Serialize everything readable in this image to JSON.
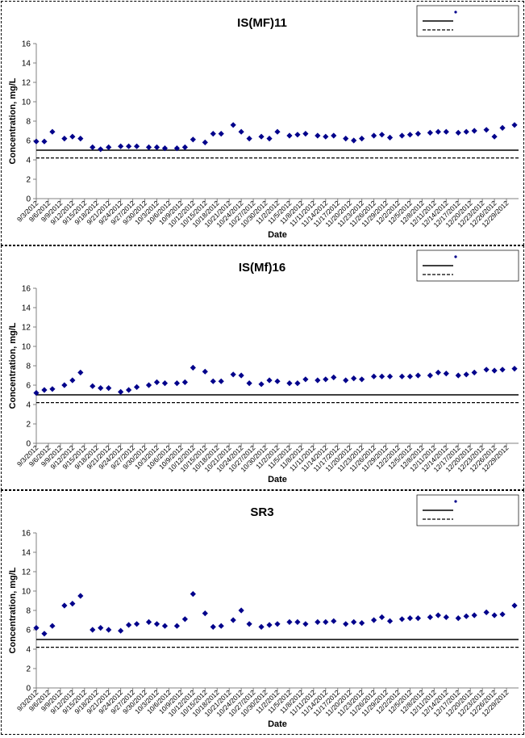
{
  "colors": {
    "marker": "#00008B",
    "axis": "#808080",
    "line": "#000000"
  },
  "x_dates": [
    "9/3/2012",
    "9/6/2012",
    "9/9/2012",
    "9/12/2012",
    "9/15/2012",
    "9/18/2012",
    "9/21/2012",
    "9/24/2012",
    "9/27/2012",
    "9/30/2012",
    "10/3/2012",
    "10/6/2012",
    "10/9/2012",
    "10/12/2012",
    "10/15/2012",
    "10/18/2012",
    "10/21/2012",
    "10/24/2012",
    "10/27/2012",
    "10/30/2012",
    "11/2/2012",
    "11/5/2012",
    "11/8/2012",
    "11/11/2012",
    "11/14/2012",
    "11/17/2012",
    "11/20/2012",
    "11/23/2012",
    "11/26/2012",
    "11/29/2012",
    "12/2/2012",
    "12/5/2012",
    "12/8/2012",
    "12/11/2012",
    "12/14/2012",
    "12/17/2012",
    "12/20/2012",
    "12/23/2012",
    "12/26/2012",
    "12/29/2012"
  ],
  "chart_data": [
    {
      "type": "scatter",
      "title": "IS(MF)11",
      "xlabel": "Date",
      "ylabel": "Concentration, mg/L",
      "ylim": [
        0,
        16
      ],
      "yticks": [
        0,
        2,
        4,
        6,
        8,
        10,
        12,
        14,
        16
      ],
      "x_tick_labels": [
        "9/3/2012",
        "9/6/2012",
        "9/9/2012",
        "9/12/2012",
        "9/15/2012",
        "9/18/2012",
        "9/21/2012",
        "9/24/2012",
        "9/27/2012",
        "9/30/2012",
        "10/3/2012",
        "10/6/2012",
        "10/9/2012",
        "10/12/2012",
        "10/15/2012",
        "10/18/2012",
        "10/21/2012",
        "10/24/2012",
        "10/27/2012",
        "10/30/2012",
        "11/2/2012",
        "11/5/2012",
        "11/8/2012",
        "11/11/2012",
        "11/14/2012",
        "11/17/2012",
        "11/20/2012",
        "11/23/2012",
        "11/26/2012",
        "11/29/2012",
        "12/2/2012",
        "12/5/2012",
        "12/8/2012",
        "12/11/2012",
        "12/14/2012",
        "12/17/2012",
        "12/20/2012",
        "12/23/2012",
        "12/26/2012",
        "12/29/2012"
      ],
      "legend_placement": "top-right",
      "grid": false,
      "points": [
        {
          "x": "9/3/2012",
          "y": 5.9
        },
        {
          "x": "9/5/2012",
          "y": 5.9
        },
        {
          "x": "9/7/2012",
          "y": 6.9
        },
        {
          "x": "9/10/2012",
          "y": 6.2
        },
        {
          "x": "9/12/2012",
          "y": 6.4
        },
        {
          "x": "9/14/2012",
          "y": 6.2
        },
        {
          "x": "9/17/2012",
          "y": 5.3
        },
        {
          "x": "9/19/2012",
          "y": 5.1
        },
        {
          "x": "9/21/2012",
          "y": 5.3
        },
        {
          "x": "9/24/2012",
          "y": 5.4
        },
        {
          "x": "9/26/2012",
          "y": 5.4
        },
        {
          "x": "9/28/2012",
          "y": 5.4
        },
        {
          "x": "10/1/2012",
          "y": 5.3
        },
        {
          "x": "10/3/2012",
          "y": 5.3
        },
        {
          "x": "10/5/2012",
          "y": 5.2
        },
        {
          "x": "10/8/2012",
          "y": 5.2
        },
        {
          "x": "10/10/2012",
          "y": 5.3
        },
        {
          "x": "10/12/2012",
          "y": 6.1
        },
        {
          "x": "10/15/2012",
          "y": 5.8
        },
        {
          "x": "10/17/2012",
          "y": 6.7
        },
        {
          "x": "10/19/2012",
          "y": 6.7
        },
        {
          "x": "10/22/2012",
          "y": 7.6
        },
        {
          "x": "10/24/2012",
          "y": 6.9
        },
        {
          "x": "10/26/2012",
          "y": 6.2
        },
        {
          "x": "10/29/2012",
          "y": 6.4
        },
        {
          "x": "10/31/2012",
          "y": 6.2
        },
        {
          "x": "11/2/2012",
          "y": 6.9
        },
        {
          "x": "11/5/2012",
          "y": 6.5
        },
        {
          "x": "11/7/2012",
          "y": 6.6
        },
        {
          "x": "11/9/2012",
          "y": 6.7
        },
        {
          "x": "11/12/2012",
          "y": 6.5
        },
        {
          "x": "11/14/2012",
          "y": 6.4
        },
        {
          "x": "11/16/2012",
          "y": 6.5
        },
        {
          "x": "11/19/2012",
          "y": 6.2
        },
        {
          "x": "11/21/2012",
          "y": 6.0
        },
        {
          "x": "11/23/2012",
          "y": 6.2
        },
        {
          "x": "11/26/2012",
          "y": 6.5
        },
        {
          "x": "11/28/2012",
          "y": 6.6
        },
        {
          "x": "11/30/2012",
          "y": 6.3
        },
        {
          "x": "12/3/2012",
          "y": 6.5
        },
        {
          "x": "12/5/2012",
          "y": 6.6
        },
        {
          "x": "12/7/2012",
          "y": 6.7
        },
        {
          "x": "12/10/2012",
          "y": 6.8
        },
        {
          "x": "12/12/2012",
          "y": 6.9
        },
        {
          "x": "12/14/2012",
          "y": 6.9
        },
        {
          "x": "12/17/2012",
          "y": 6.8
        },
        {
          "x": "12/19/2012",
          "y": 6.9
        },
        {
          "x": "12/21/2012",
          "y": 7.0
        },
        {
          "x": "12/24/2012",
          "y": 7.1
        },
        {
          "x": "12/26/2012",
          "y": 6.4
        },
        {
          "x": "12/28/2012",
          "y": 7.3
        },
        {
          "x": "12/31/2012",
          "y": 7.6
        }
      ],
      "reference_lines": [
        {
          "y": 5.0,
          "style": "solid"
        },
        {
          "y": 4.2,
          "style": "dashed"
        }
      ]
    },
    {
      "type": "scatter",
      "title": "IS(Mf)16",
      "xlabel": "Date",
      "ylabel": "Concentration, mg/L",
      "ylim": [
        0,
        16
      ],
      "yticks": [
        0,
        2,
        4,
        6,
        8,
        10,
        12,
        14,
        16
      ],
      "x_tick_labels": [
        "9/3/2012",
        "9/6/2012",
        "9/9/2012",
        "9/12/2012",
        "9/15/2012",
        "9/18/2012",
        "9/21/2012",
        "9/24/2012",
        "9/27/2012",
        "9/30/2012",
        "10/3/2012",
        "10/6/2012",
        "10/9/2012",
        "10/12/2012",
        "10/15/2012",
        "10/18/2012",
        "10/21/2012",
        "10/24/2012",
        "10/27/2012",
        "10/30/2012",
        "11/2/2012",
        "11/5/2012",
        "11/8/2012",
        "11/11/2012",
        "11/14/2012",
        "11/17/2012",
        "11/20/2012",
        "11/23/2012",
        "11/26/2012",
        "11/29/2012",
        "12/2/2012",
        "12/5/2012",
        "12/8/2012",
        "12/11/2012",
        "12/14/2012",
        "12/17/2012",
        "12/20/2012",
        "12/23/2012",
        "12/26/2012",
        "12/29/2012"
      ],
      "legend_placement": "top-right",
      "grid": false,
      "points": [
        {
          "x": "9/3/2012",
          "y": 5.2
        },
        {
          "x": "9/5/2012",
          "y": 5.5
        },
        {
          "x": "9/7/2012",
          "y": 5.6
        },
        {
          "x": "9/10/2012",
          "y": 6.0
        },
        {
          "x": "9/12/2012",
          "y": 6.5
        },
        {
          "x": "9/14/2012",
          "y": 7.3
        },
        {
          "x": "9/17/2012",
          "y": 5.9
        },
        {
          "x": "9/19/2012",
          "y": 5.7
        },
        {
          "x": "9/21/2012",
          "y": 5.7
        },
        {
          "x": "9/24/2012",
          "y": 5.3
        },
        {
          "x": "9/26/2012",
          "y": 5.5
        },
        {
          "x": "9/28/2012",
          "y": 5.8
        },
        {
          "x": "10/1/2012",
          "y": 6.0
        },
        {
          "x": "10/3/2012",
          "y": 6.3
        },
        {
          "x": "10/5/2012",
          "y": 6.2
        },
        {
          "x": "10/8/2012",
          "y": 6.2
        },
        {
          "x": "10/10/2012",
          "y": 6.3
        },
        {
          "x": "10/12/2012",
          "y": 7.8
        },
        {
          "x": "10/15/2012",
          "y": 7.4
        },
        {
          "x": "10/17/2012",
          "y": 6.4
        },
        {
          "x": "10/19/2012",
          "y": 6.4
        },
        {
          "x": "10/22/2012",
          "y": 7.1
        },
        {
          "x": "10/24/2012",
          "y": 7.0
        },
        {
          "x": "10/26/2012",
          "y": 6.2
        },
        {
          "x": "10/29/2012",
          "y": 6.1
        },
        {
          "x": "10/31/2012",
          "y": 6.5
        },
        {
          "x": "11/2/2012",
          "y": 6.4
        },
        {
          "x": "11/5/2012",
          "y": 6.2
        },
        {
          "x": "11/7/2012",
          "y": 6.2
        },
        {
          "x": "11/9/2012",
          "y": 6.6
        },
        {
          "x": "11/12/2012",
          "y": 6.5
        },
        {
          "x": "11/14/2012",
          "y": 6.6
        },
        {
          "x": "11/16/2012",
          "y": 6.8
        },
        {
          "x": "11/19/2012",
          "y": 6.5
        },
        {
          "x": "11/21/2012",
          "y": 6.7
        },
        {
          "x": "11/23/2012",
          "y": 6.6
        },
        {
          "x": "11/26/2012",
          "y": 6.9
        },
        {
          "x": "11/28/2012",
          "y": 6.9
        },
        {
          "x": "11/30/2012",
          "y": 6.9
        },
        {
          "x": "12/3/2012",
          "y": 6.9
        },
        {
          "x": "12/5/2012",
          "y": 6.9
        },
        {
          "x": "12/7/2012",
          "y": 7.0
        },
        {
          "x": "12/10/2012",
          "y": 7.0
        },
        {
          "x": "12/12/2012",
          "y": 7.3
        },
        {
          "x": "12/14/2012",
          "y": 7.2
        },
        {
          "x": "12/17/2012",
          "y": 7.0
        },
        {
          "x": "12/19/2012",
          "y": 7.1
        },
        {
          "x": "12/21/2012",
          "y": 7.3
        },
        {
          "x": "12/24/2012",
          "y": 7.6
        },
        {
          "x": "12/26/2012",
          "y": 7.5
        },
        {
          "x": "12/28/2012",
          "y": 7.6
        },
        {
          "x": "12/31/2012",
          "y": 7.7
        }
      ],
      "reference_lines": [
        {
          "y": 5.0,
          "style": "solid"
        },
        {
          "y": 4.2,
          "style": "dashed"
        }
      ]
    },
    {
      "type": "scatter",
      "title": "SR3",
      "xlabel": "Date",
      "ylabel": "Concentration, mg/L",
      "ylim": [
        0,
        16
      ],
      "yticks": [
        0,
        2,
        4,
        6,
        8,
        10,
        12,
        14,
        16
      ],
      "x_tick_labels": [
        "9/3/2012",
        "9/6/2012",
        "9/9/2012",
        "9/12/2012",
        "9/15/2012",
        "9/18/2012",
        "9/21/2012",
        "9/24/2012",
        "9/27/2012",
        "9/30/2012",
        "10/3/2012",
        "10/6/2012",
        "10/9/2012",
        "10/12/2012",
        "10/15/2012",
        "10/18/2012",
        "10/21/2012",
        "10/24/2012",
        "10/27/2012",
        "10/30/2012",
        "11/2/2012",
        "11/5/2012",
        "11/8/2012",
        "11/11/2012",
        "11/14/2012",
        "11/17/2012",
        "11/20/2012",
        "11/23/2012",
        "11/26/2012",
        "11/29/2012",
        "12/2/2012",
        "12/5/2012",
        "12/8/2012",
        "12/11/2012",
        "12/14/2012",
        "12/17/2012",
        "12/20/2012",
        "12/23/2012",
        "12/26/2012",
        "12/29/2012"
      ],
      "legend_placement": "top-right",
      "grid": false,
      "points": [
        {
          "x": "9/3/2012",
          "y": 6.2
        },
        {
          "x": "9/5/2012",
          "y": 5.6
        },
        {
          "x": "9/7/2012",
          "y": 6.4
        },
        {
          "x": "9/10/2012",
          "y": 8.5
        },
        {
          "x": "9/12/2012",
          "y": 8.7
        },
        {
          "x": "9/14/2012",
          "y": 9.5
        },
        {
          "x": "9/17/2012",
          "y": 6.0
        },
        {
          "x": "9/19/2012",
          "y": 6.2
        },
        {
          "x": "9/21/2012",
          "y": 6.0
        },
        {
          "x": "9/24/2012",
          "y": 5.9
        },
        {
          "x": "9/26/2012",
          "y": 6.5
        },
        {
          "x": "9/28/2012",
          "y": 6.6
        },
        {
          "x": "10/1/2012",
          "y": 6.8
        },
        {
          "x": "10/3/2012",
          "y": 6.6
        },
        {
          "x": "10/5/2012",
          "y": 6.4
        },
        {
          "x": "10/8/2012",
          "y": 6.4
        },
        {
          "x": "10/10/2012",
          "y": 7.1
        },
        {
          "x": "10/12/2012",
          "y": 9.7
        },
        {
          "x": "10/15/2012",
          "y": 7.7
        },
        {
          "x": "10/17/2012",
          "y": 6.3
        },
        {
          "x": "10/19/2012",
          "y": 6.4
        },
        {
          "x": "10/22/2012",
          "y": 7.0
        },
        {
          "x": "10/24/2012",
          "y": 8.0
        },
        {
          "x": "10/26/2012",
          "y": 6.6
        },
        {
          "x": "10/29/2012",
          "y": 6.3
        },
        {
          "x": "10/31/2012",
          "y": 6.5
        },
        {
          "x": "11/2/2012",
          "y": 6.6
        },
        {
          "x": "11/5/2012",
          "y": 6.8
        },
        {
          "x": "11/7/2012",
          "y": 6.8
        },
        {
          "x": "11/9/2012",
          "y": 6.6
        },
        {
          "x": "11/12/2012",
          "y": 6.8
        },
        {
          "x": "11/14/2012",
          "y": 6.8
        },
        {
          "x": "11/16/2012",
          "y": 6.9
        },
        {
          "x": "11/19/2012",
          "y": 6.6
        },
        {
          "x": "11/21/2012",
          "y": 6.8
        },
        {
          "x": "11/23/2012",
          "y": 6.7
        },
        {
          "x": "11/26/2012",
          "y": 7.0
        },
        {
          "x": "11/28/2012",
          "y": 7.3
        },
        {
          "x": "11/30/2012",
          "y": 6.9
        },
        {
          "x": "12/3/2012",
          "y": 7.1
        },
        {
          "x": "12/5/2012",
          "y": 7.2
        },
        {
          "x": "12/7/2012",
          "y": 7.2
        },
        {
          "x": "12/10/2012",
          "y": 7.3
        },
        {
          "x": "12/12/2012",
          "y": 7.5
        },
        {
          "x": "12/14/2012",
          "y": 7.3
        },
        {
          "x": "12/17/2012",
          "y": 7.2
        },
        {
          "x": "12/19/2012",
          "y": 7.4
        },
        {
          "x": "12/21/2012",
          "y": 7.5
        },
        {
          "x": "12/24/2012",
          "y": 7.8
        },
        {
          "x": "12/26/2012",
          "y": 7.5
        },
        {
          "x": "12/28/2012",
          "y": 7.6
        },
        {
          "x": "12/31/2012",
          "y": 8.5
        }
      ],
      "reference_lines": [
        {
          "y": 5.0,
          "style": "solid"
        },
        {
          "y": 4.2,
          "style": "dashed"
        }
      ]
    }
  ]
}
